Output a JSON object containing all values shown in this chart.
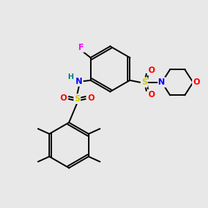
{
  "bg_color": "#e8e8e8",
  "bond_color": "#000000",
  "bw": 1.5,
  "atom_colors": {
    "F": "#ff00ff",
    "N": "#0000ff",
    "H": "#008080",
    "S": "#cccc00",
    "O": "#ff0000",
    "C": "#000000"
  },
  "fs": 8.5
}
